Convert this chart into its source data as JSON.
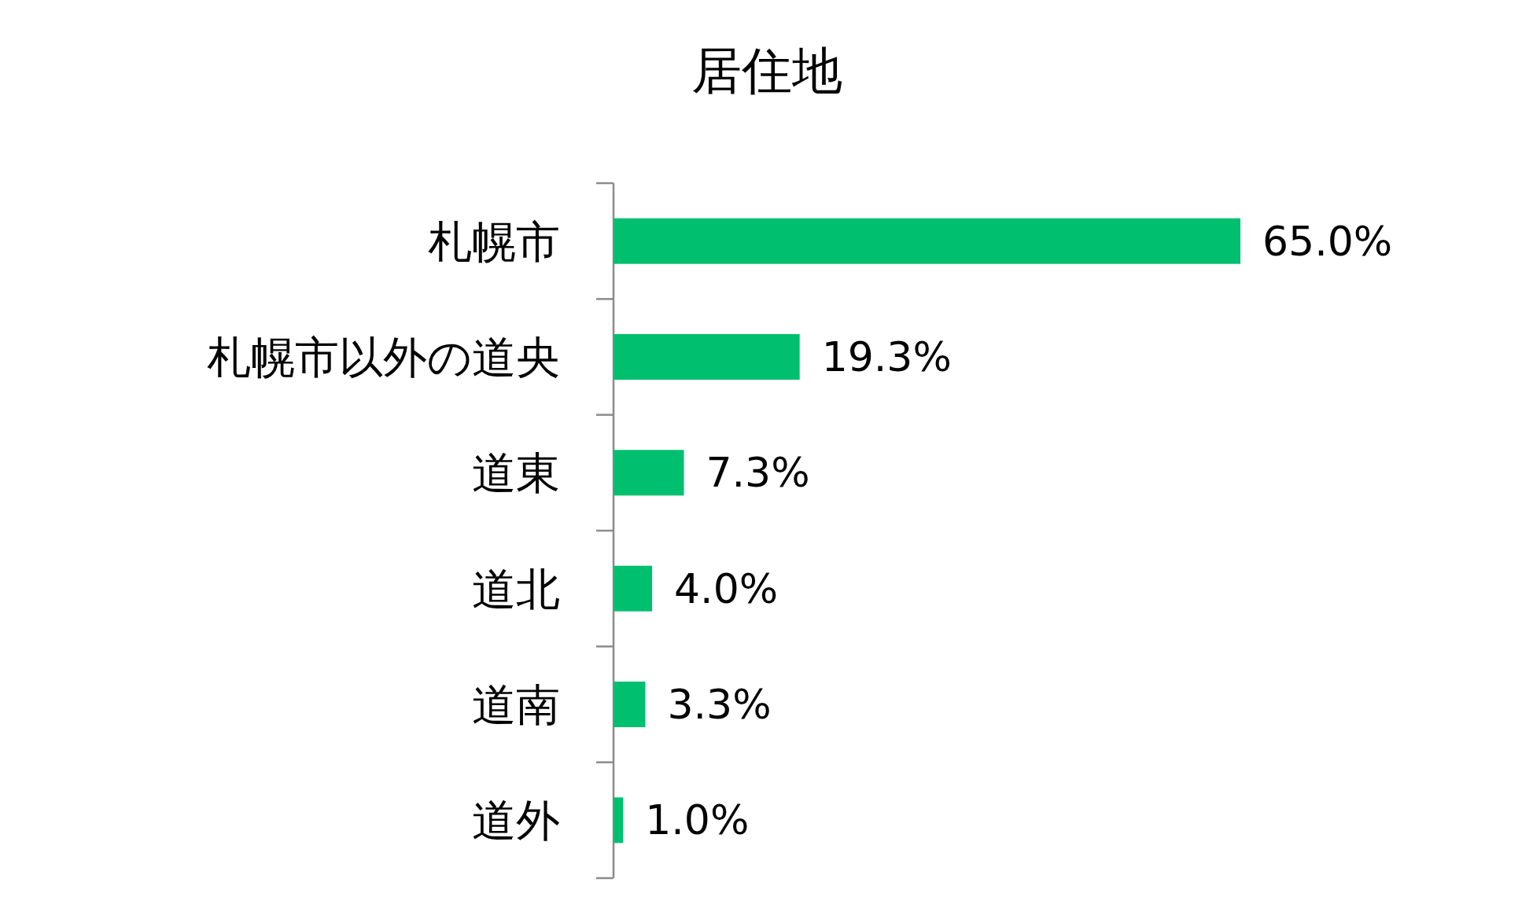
{
  "chart_data": {
    "type": "bar",
    "orientation": "horizontal",
    "title": "居住地",
    "categories": [
      "札幌市",
      "札幌市以外の道央",
      "道東",
      "道北",
      "道南",
      "道外"
    ],
    "values": [
      65.0,
      19.3,
      7.3,
      4.0,
      3.3,
      1.0
    ],
    "value_labels": [
      "65.0%",
      "19.3%",
      "7.3%",
      "4.0%",
      "3.3%",
      "1.0%"
    ],
    "color": "#00bf6f"
  }
}
